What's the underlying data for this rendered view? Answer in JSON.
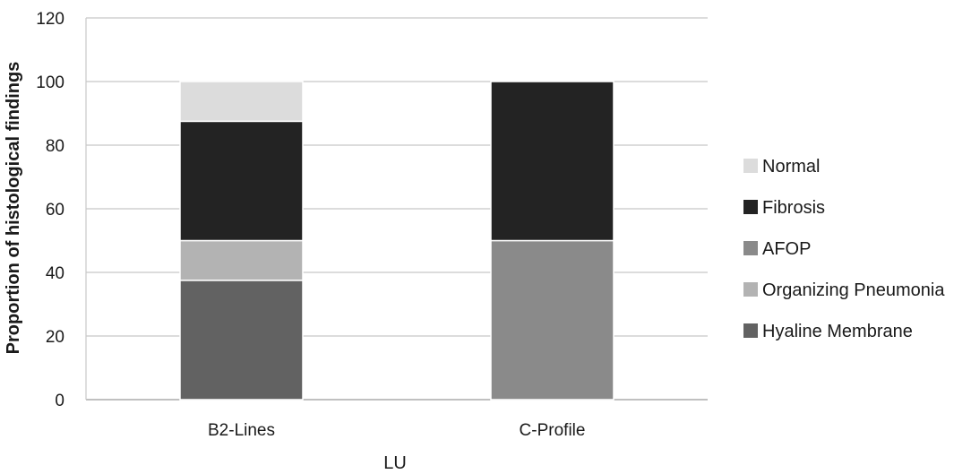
{
  "chart_data": {
    "type": "bar",
    "stacked": true,
    "xlabel": "LU",
    "ylabel": "Proportion of histological findings",
    "ylim": [
      0,
      120
    ],
    "yticks": [
      0,
      20,
      40,
      60,
      80,
      100,
      120
    ],
    "grid": true,
    "legend_position": "right",
    "categories": [
      "B2-Lines",
      "C-Profile"
    ],
    "series": [
      {
        "name": "Hyaline Membrane",
        "color": "#626262",
        "values": [
          37.5,
          0
        ]
      },
      {
        "name": "Organizing Pneumonia",
        "color": "#b3b3b3",
        "values": [
          12.5,
          0
        ]
      },
      {
        "name": "AFOP",
        "color": "#8a8a8a",
        "values": [
          0,
          50
        ]
      },
      {
        "name": "Fibrosis",
        "color": "#232323",
        "values": [
          37.5,
          50
        ]
      },
      {
        "name": "Normal",
        "color": "#dcdcdc",
        "values": [
          12.5,
          0
        ]
      }
    ]
  }
}
